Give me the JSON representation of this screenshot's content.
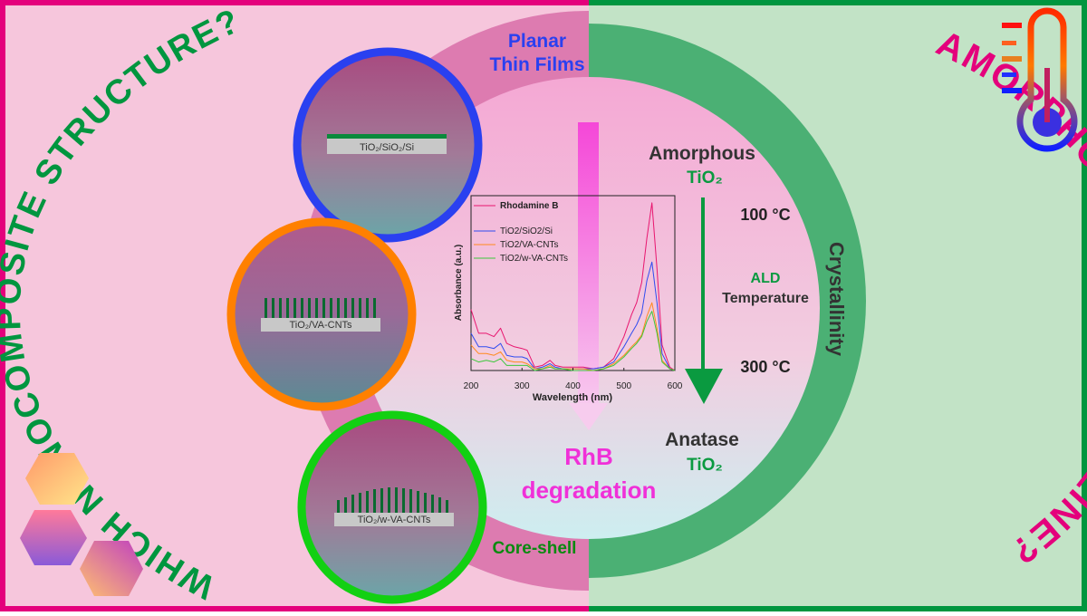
{
  "left_question": "WHICH NANOCOMPOSITE STRUCTURE?",
  "right_question": "AMORPHOUS OR CRYSTALLINE?",
  "structures": {
    "planar": {
      "label": "Planar",
      "label2": "Thin Films",
      "sample": "TiO₂/SiO₂/Si"
    },
    "vacnt": {
      "sample": "TiO₂/VA-CNTs"
    },
    "wvacnt": {
      "label": "Core-shell",
      "sample": "TiO₂/w-VA-CNTs"
    }
  },
  "phases": {
    "top_name": "Amorphous",
    "top_formula": "TiO₂",
    "bottom_name": "Anatase",
    "bottom_formula": "TiO₂",
    "temp_low": "100 °C",
    "temp_high": "300 °C",
    "ald": "ALD",
    "temperature": "Temperature",
    "crystallinity": "Crystallinity"
  },
  "degradation": {
    "line1": "RhB",
    "line2": "degradation"
  },
  "colors": {
    "pink_bg": "#f6c6dc",
    "green_bg": "#c2e3c6",
    "magenta": "#e4007c",
    "green": "#00963f",
    "ring_pink": "#dd7bb0",
    "ring_green": "#4bb074"
  },
  "chart_data": {
    "type": "line",
    "xlabel": "Wavelength (nm)",
    "ylabel": "Absorbance (a.u.)",
    "xlim": [
      200,
      600
    ],
    "ylim": [
      0,
      1
    ],
    "xticks": [
      "200",
      "300",
      "400",
      "500",
      "600"
    ],
    "x": [
      200,
      215,
      230,
      245,
      258,
      270,
      285,
      300,
      310,
      325,
      340,
      355,
      365,
      380,
      400,
      420,
      440,
      460,
      480,
      500,
      515,
      525,
      535,
      545,
      555,
      565,
      575,
      590,
      600
    ],
    "series": [
      {
        "name": "Rhodamine B",
        "color": "#e8166f",
        "values": [
          0.36,
          0.22,
          0.22,
          0.2,
          0.25,
          0.16,
          0.14,
          0.13,
          0.12,
          0.02,
          0.03,
          0.06,
          0.03,
          0.02,
          0.02,
          0.02,
          0.01,
          0.02,
          0.07,
          0.2,
          0.33,
          0.4,
          0.52,
          0.78,
          0.99,
          0.6,
          0.15,
          0.02,
          0.0
        ]
      },
      {
        "name": "TiO2/SiO2/Si",
        "color": "#2f4cf0",
        "values": [
          0.22,
          0.14,
          0.14,
          0.13,
          0.16,
          0.09,
          0.08,
          0.08,
          0.07,
          0.01,
          0.02,
          0.04,
          0.02,
          0.01,
          0.01,
          0.01,
          0.01,
          0.02,
          0.05,
          0.14,
          0.22,
          0.27,
          0.34,
          0.53,
          0.64,
          0.4,
          0.1,
          0.01,
          0.0
        ]
      },
      {
        "name": "TiO2/VA-CNTs",
        "color": "#ff8a1e",
        "values": [
          0.15,
          0.1,
          0.1,
          0.09,
          0.11,
          0.06,
          0.05,
          0.05,
          0.04,
          0.01,
          0.01,
          0.03,
          0.01,
          0.01,
          0.01,
          0.01,
          0.0,
          0.01,
          0.04,
          0.09,
          0.14,
          0.17,
          0.21,
          0.32,
          0.4,
          0.25,
          0.06,
          0.01,
          0.0
        ]
      },
      {
        "name": "TiO2/w-VA-CNTs",
        "color": "#3cc83c",
        "values": [
          0.07,
          0.05,
          0.06,
          0.05,
          0.07,
          0.03,
          0.03,
          0.03,
          0.03,
          0.0,
          0.01,
          0.02,
          0.01,
          0.01,
          0.0,
          0.0,
          0.0,
          0.01,
          0.03,
          0.08,
          0.13,
          0.16,
          0.2,
          0.29,
          0.35,
          0.22,
          0.05,
          0.01,
          0.0
        ]
      }
    ],
    "legend": [
      "Rhodamine B",
      "TiO2/SiO2/Si",
      "TiO2/VA-CNTs",
      "TiO2/w-VA-CNTs"
    ],
    "legend_position": "top-left"
  }
}
